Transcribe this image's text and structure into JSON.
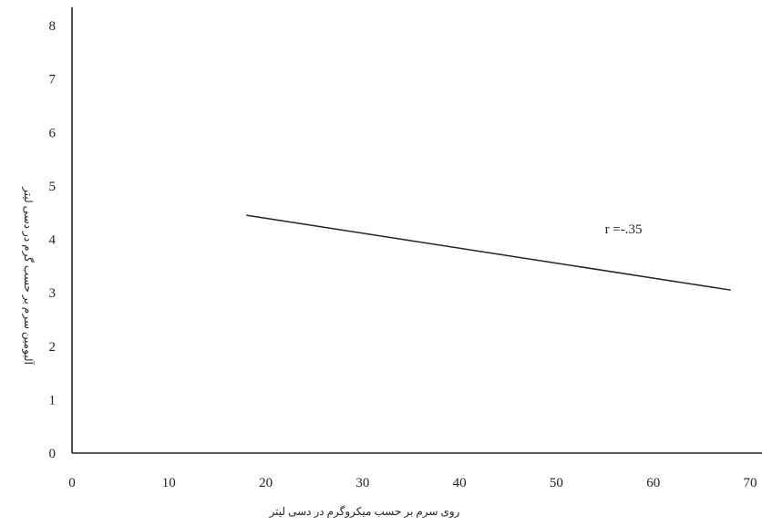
{
  "chart_data": {
    "type": "line",
    "title": "",
    "xlabel": "روی سرم بر حسب میکروگرم در دسی لیتر",
    "ylabel": "آلبومین سرم بر حسب گرم در دسی لیتر",
    "xlim": [
      0,
      70
    ],
    "ylim": [
      0,
      8
    ],
    "x_ticks": [
      0,
      10,
      20,
      30,
      40,
      50,
      60,
      70
    ],
    "y_ticks": [
      0,
      1,
      2,
      3,
      4,
      5,
      6,
      7,
      8
    ],
    "grid": false,
    "series": [
      {
        "x": [
          18,
          68
        ],
        "y": [
          4.45,
          3.05
        ]
      }
    ],
    "annotations": [
      {
        "text": "r =-.35",
        "x": 55,
        "y": 4.2
      }
    ],
    "colors": {
      "line": "#222222",
      "axis": "#222222"
    }
  }
}
